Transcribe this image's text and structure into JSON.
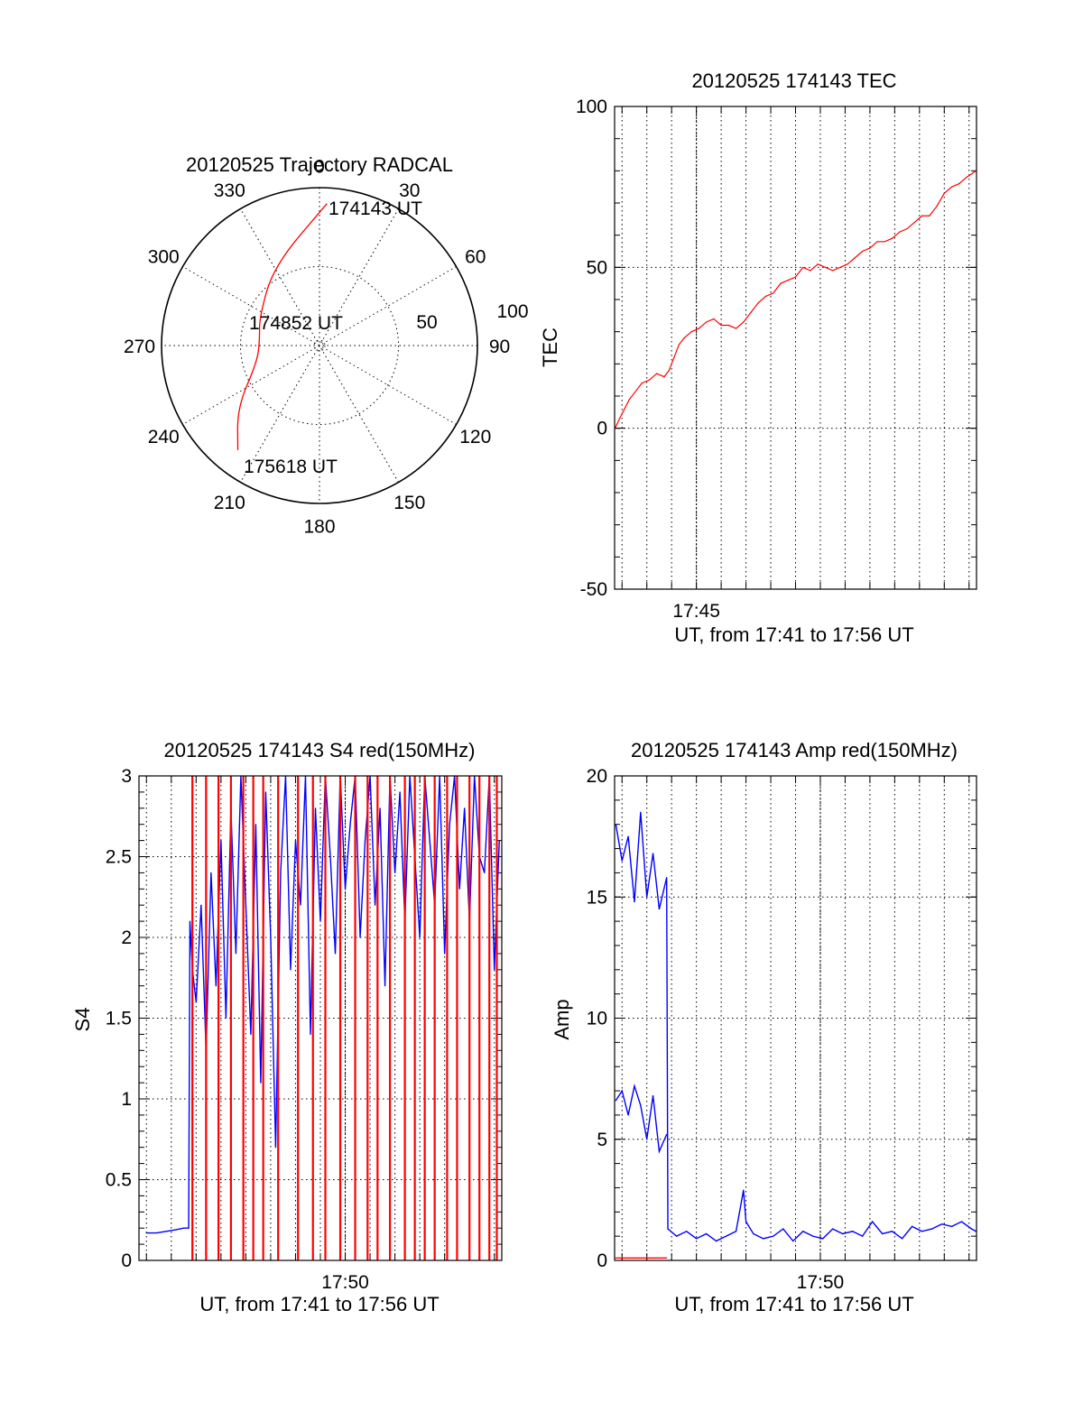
{
  "chart_data": [
    {
      "type": "polar",
      "title": "20120525 Trajectory RADCAL",
      "azimuth_labels": [
        "0",
        "30",
        "60",
        "90",
        "120",
        "150",
        "180",
        "210",
        "240",
        "270",
        "300",
        "330"
      ],
      "radial_labels": [
        "50",
        "100"
      ],
      "rlim": [
        0,
        100
      ],
      "trajectory": {
        "color": "#ff0000",
        "points": [
          {
            "az": 3,
            "r": 90
          },
          {
            "az": 330,
            "r": 58
          },
          {
            "az": 295,
            "r": 42
          },
          {
            "az": 275,
            "r": 38
          },
          {
            "az": 255,
            "r": 41
          },
          {
            "az": 233,
            "r": 65
          },
          {
            "az": 218,
            "r": 84
          }
        ]
      },
      "annotations": [
        {
          "text": "174143 UT",
          "az": 3,
          "r": 90
        },
        {
          "text": "174852 UT",
          "az": 285,
          "r": 40
        },
        {
          "text": "175618 UT",
          "az": 218,
          "r": 84
        }
      ]
    },
    {
      "type": "line",
      "title": "20120525 174143 TEC",
      "xlabel": "UT, from 17:41 to 17:56 UT",
      "ylabel": "TEC",
      "xlim_minutes": [
        41.7,
        56.3
      ],
      "ylim": [
        -50,
        100
      ],
      "yticks": [
        "-50",
        "0",
        "50",
        "100"
      ],
      "xticks": [
        {
          "minute": 45,
          "label": "17:45"
        }
      ],
      "grid": true,
      "series": [
        {
          "color": "#ff0000",
          "x_minutes": [
            41.72,
            41.9,
            42.1,
            42.3,
            42.5,
            42.8,
            43.1,
            43.4,
            43.7,
            43.9,
            44.1,
            44.3,
            44.5,
            44.8,
            45.1,
            45.4,
            45.7,
            46.0,
            46.3,
            46.6,
            46.9,
            47.2,
            47.5,
            47.8,
            48.1,
            48.4,
            48.7,
            49.0,
            49.3,
            49.6,
            49.9,
            50.2,
            50.5,
            50.8,
            51.1,
            51.4,
            51.7,
            52.0,
            52.3,
            52.6,
            52.9,
            53.2,
            53.5,
            53.8,
            54.1,
            54.4,
            54.7,
            55.0,
            55.3,
            55.6,
            55.9,
            56.28
          ],
          "values": [
            0,
            3,
            6,
            9,
            11,
            14,
            15,
            17,
            16,
            18,
            22,
            26,
            28,
            30,
            31,
            33,
            34,
            32,
            32,
            31,
            33,
            36,
            39,
            41,
            42,
            45,
            46,
            47,
            50,
            49,
            51,
            50,
            49,
            50,
            51,
            53,
            55,
            56,
            58,
            58,
            59,
            61,
            62,
            64,
            66,
            66,
            69,
            73,
            75,
            76,
            78,
            80
          ]
        }
      ]
    },
    {
      "type": "line",
      "title": "20120525 174143 S4 red(150MHz)",
      "xlabel": "UT, from 17:41 to 17:56 UT",
      "ylabel": "S4",
      "xlim_minutes": [
        41.7,
        56.3
      ],
      "ylim": [
        0,
        3
      ],
      "yticks": [
        "0",
        "0.5",
        "1",
        "1.5",
        "2",
        "2.5",
        "3"
      ],
      "xticks": [
        {
          "minute": 50,
          "label": "17:50"
        }
      ],
      "grid": true,
      "series": [
        {
          "color": "#0000ff",
          "x_minutes": [
            42.0,
            42.4,
            42.8,
            43.2,
            43.5,
            43.7,
            43.75,
            43.85,
            44.0,
            44.2,
            44.4,
            44.6,
            44.8,
            45.0,
            45.2,
            45.4,
            45.6,
            45.8,
            46.0,
            46.2,
            46.4,
            46.6,
            46.8,
            47.0,
            47.2,
            47.4,
            47.6,
            47.8,
            48.0,
            48.2,
            48.4,
            48.6,
            48.8,
            49.0,
            49.2,
            49.4,
            49.6,
            49.8,
            50.0,
            50.2,
            50.4,
            50.6,
            50.8,
            51.0,
            51.2,
            51.4,
            51.6,
            51.8,
            52.0,
            52.2,
            52.4,
            52.6,
            52.8,
            53.0,
            53.2,
            53.4,
            53.6,
            53.8,
            54.0,
            54.2,
            54.4,
            54.6,
            54.8,
            55.0,
            55.2,
            55.4,
            55.6,
            55.8,
            56.0,
            56.2
          ],
          "values": [
            0.17,
            0.17,
            0.18,
            0.19,
            0.2,
            0.2,
            2.1,
            1.8,
            1.6,
            2.2,
            1.3,
            2.4,
            1.7,
            2.6,
            1.5,
            2.8,
            1.9,
            3.0,
            2.2,
            1.4,
            2.7,
            1.1,
            2.9,
            2.0,
            0.7,
            2.4,
            3.0,
            1.8,
            2.6,
            2.2,
            3.0,
            1.4,
            2.8,
            2.1,
            3.0,
            2.5,
            1.9,
            3.0,
            2.3,
            2.7,
            3.0,
            2.0,
            2.6,
            3.0,
            2.2,
            2.8,
            1.7,
            3.0,
            2.4,
            2.9,
            2.1,
            3.0,
            2.5,
            2.0,
            3.0,
            2.6,
            2.2,
            3.0,
            1.9,
            2.7,
            3.0,
            2.3,
            2.8,
            2.1,
            3.0,
            2.5,
            2.4,
            3.0,
            1.8,
            2.6
          ]
        },
        {
          "color": "#ff0000",
          "x_minutes": [
            43.85,
            44.4,
            44.9,
            45.4,
            45.9,
            46.3,
            46.7,
            47.3,
            48.1,
            48.7,
            49.2,
            49.8,
            50.4,
            50.9,
            51.3,
            51.8,
            52.4,
            52.8,
            53.2,
            53.6,
            54.1,
            54.5,
            55.0,
            55.4,
            55.8,
            56.1
          ],
          "values": [
            3.0,
            3.0,
            3.0,
            3.0,
            3.0,
            3.0,
            3.0,
            3.0,
            3.0,
            3.0,
            3.0,
            3.0,
            3.0,
            3.0,
            3.0,
            3.0,
            3.0,
            3.0,
            3.0,
            3.0,
            3.0,
            3.0,
            3.0,
            3.0,
            3.0,
            3.0
          ]
        }
      ]
    },
    {
      "type": "line",
      "title": "20120525 174143 Amp red(150MHz)",
      "xlabel": "UT, from 17:41 to 17:56 UT",
      "ylabel": "Amp",
      "xlim_minutes": [
        41.7,
        56.3
      ],
      "ylim": [
        0,
        20
      ],
      "yticks": [
        "0",
        "5",
        "10",
        "15",
        "20"
      ],
      "xticks": [
        {
          "minute": 50,
          "label": "17:50"
        }
      ],
      "grid": true,
      "series": [
        {
          "color": "#0000ff",
          "x_minutes": [
            41.75,
            42.0,
            42.25,
            42.5,
            42.75,
            43.0,
            43.25,
            43.5,
            43.8,
            43.85,
            44.2,
            44.6,
            45.0,
            45.4,
            45.8,
            46.2,
            46.6,
            46.9,
            47.0,
            47.3,
            47.7,
            48.1,
            48.5,
            48.9,
            49.3,
            49.7,
            50.1,
            50.5,
            50.9,
            51.3,
            51.7,
            52.1,
            52.5,
            52.9,
            53.3,
            53.7,
            54.1,
            54.5,
            54.9,
            55.3,
            55.7,
            56.1,
            56.28
          ],
          "values": [
            18.0,
            16.5,
            17.5,
            14.8,
            18.5,
            15.0,
            16.8,
            14.5,
            15.8,
            1.3,
            1.0,
            1.2,
            0.9,
            1.1,
            0.8,
            1.0,
            1.2,
            2.9,
            1.6,
            1.1,
            0.9,
            1.0,
            1.3,
            0.8,
            1.2,
            1.0,
            0.9,
            1.3,
            1.1,
            1.2,
            1.0,
            1.6,
            1.1,
            1.2,
            0.9,
            1.4,
            1.2,
            1.3,
            1.5,
            1.4,
            1.6,
            1.3,
            1.2
          ]
        },
        {
          "color": "#0000ff",
          "x_minutes": [
            41.75,
            42.0,
            42.25,
            42.5,
            42.75,
            43.0,
            43.25,
            43.5,
            43.8
          ],
          "values": [
            6.6,
            7.0,
            6.0,
            7.2,
            6.4,
            5.0,
            6.8,
            4.5,
            5.2
          ]
        },
        {
          "color": "#ff0000",
          "x_minutes": [
            41.75,
            43.8
          ],
          "values": [
            0.1,
            0.1
          ]
        }
      ]
    }
  ]
}
